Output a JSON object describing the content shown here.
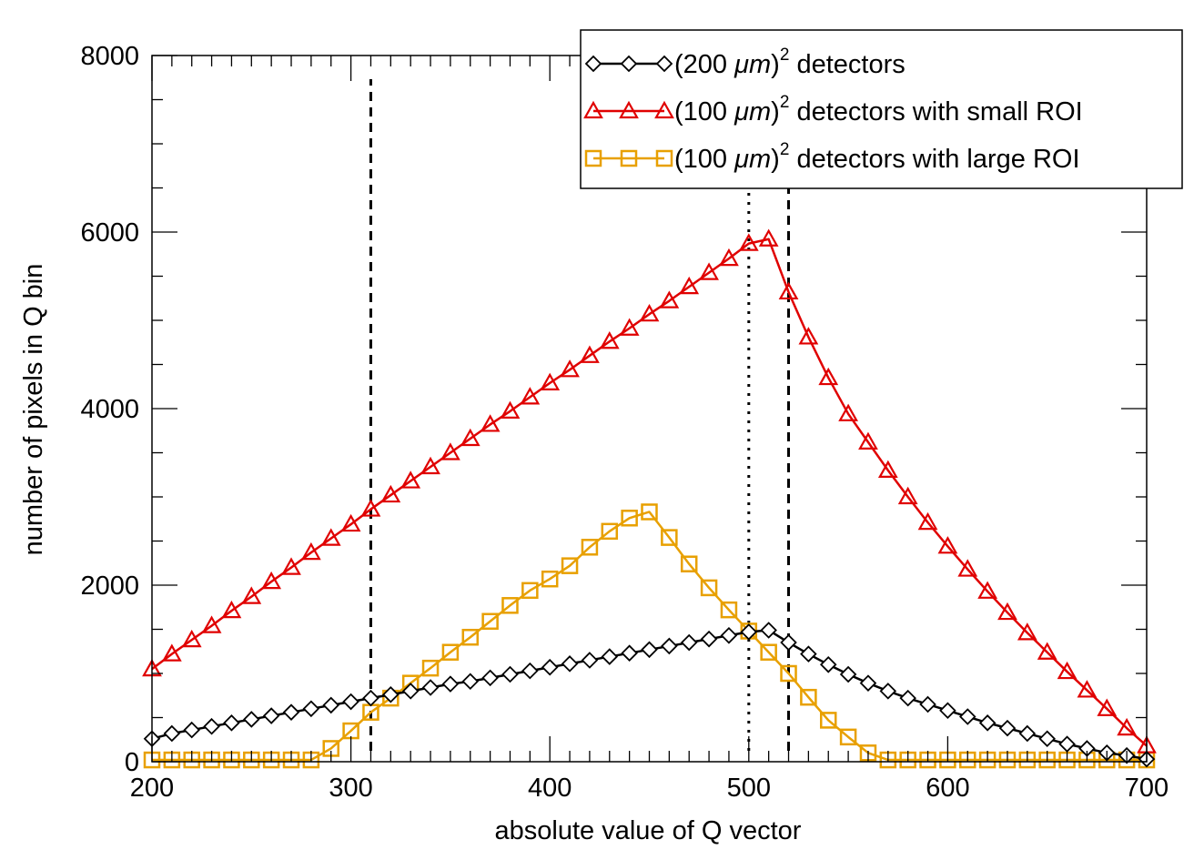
{
  "chart_data": {
    "type": "line",
    "title": "",
    "xlabel": "absolute value of Q vector",
    "ylabel": "number of pixels in Q bin",
    "xlim": [
      200,
      700
    ],
    "ylim": [
      0,
      8000
    ],
    "xticks": [
      200,
      300,
      400,
      500,
      600,
      700
    ],
    "yticks": [
      0,
      2000,
      4000,
      6000,
      8000
    ],
    "x": [
      200,
      210,
      220,
      230,
      240,
      250,
      260,
      270,
      280,
      290,
      300,
      310,
      320,
      330,
      340,
      350,
      360,
      370,
      380,
      390,
      400,
      410,
      420,
      430,
      440,
      450,
      460,
      470,
      480,
      490,
      500,
      510,
      520,
      530,
      540,
      550,
      560,
      570,
      580,
      590,
      600,
      610,
      620,
      630,
      640,
      650,
      660,
      670,
      680,
      690,
      700
    ],
    "series": [
      {
        "name": "(200 μm)² detectors",
        "label_prefix": "(200 ",
        "label_unit": "μm",
        "label_suffix": " detectors",
        "color": "#000000",
        "marker": "diamond",
        "values": [
          260,
          320,
          360,
          400,
          440,
          480,
          520,
          560,
          600,
          640,
          680,
          720,
          760,
          800,
          840,
          880,
          910,
          950,
          990,
          1030,
          1070,
          1110,
          1150,
          1190,
          1230,
          1270,
          1310,
          1350,
          1390,
          1430,
          1470,
          1490,
          1350,
          1220,
          1100,
          990,
          890,
          800,
          720,
          650,
          580,
          510,
          440,
          380,
          320,
          260,
          200,
          150,
          100,
          70,
          30
        ]
      },
      {
        "name": "(100 μm)² detectors with small ROI",
        "label_prefix": "(100 ",
        "label_unit": "μm",
        "label_suffix": " detectors with small ROI",
        "color": "#e00000",
        "marker": "triangle",
        "values": [
          1050,
          1220,
          1380,
          1540,
          1710,
          1870,
          2040,
          2200,
          2370,
          2530,
          2690,
          2860,
          3020,
          3180,
          3340,
          3500,
          3660,
          3820,
          3970,
          4130,
          4290,
          4440,
          4600,
          4760,
          4910,
          5070,
          5220,
          5380,
          5540,
          5700,
          5870,
          5920,
          5320,
          4810,
          4350,
          3940,
          3620,
          3300,
          3000,
          2710,
          2440,
          2180,
          1930,
          1690,
          1460,
          1240,
          1020,
          810,
          600,
          380,
          180
        ]
      },
      {
        "name": "(100 μm)² detectors with large ROI",
        "label_prefix": "(100 ",
        "label_unit": "μm",
        "label_suffix": " detectors with large ROI",
        "color": "#e8a000",
        "marker": "square",
        "values": [
          20,
          20,
          20,
          20,
          20,
          20,
          20,
          20,
          20,
          150,
          350,
          560,
          720,
          890,
          1060,
          1240,
          1410,
          1590,
          1770,
          1940,
          2070,
          2220,
          2430,
          2610,
          2760,
          2830,
          2540,
          2240,
          1970,
          1720,
          1480,
          1240,
          1000,
          730,
          470,
          280,
          100,
          20,
          20,
          20,
          20,
          20,
          20,
          20,
          20,
          20,
          20,
          20,
          20,
          20,
          20
        ]
      }
    ],
    "vlines": [
      {
        "x": 310,
        "style": "dashed"
      },
      {
        "x": 500,
        "style": "dotted"
      },
      {
        "x": 520,
        "style": "dashed"
      }
    ],
    "legend_position": "top-right",
    "grid": false
  }
}
